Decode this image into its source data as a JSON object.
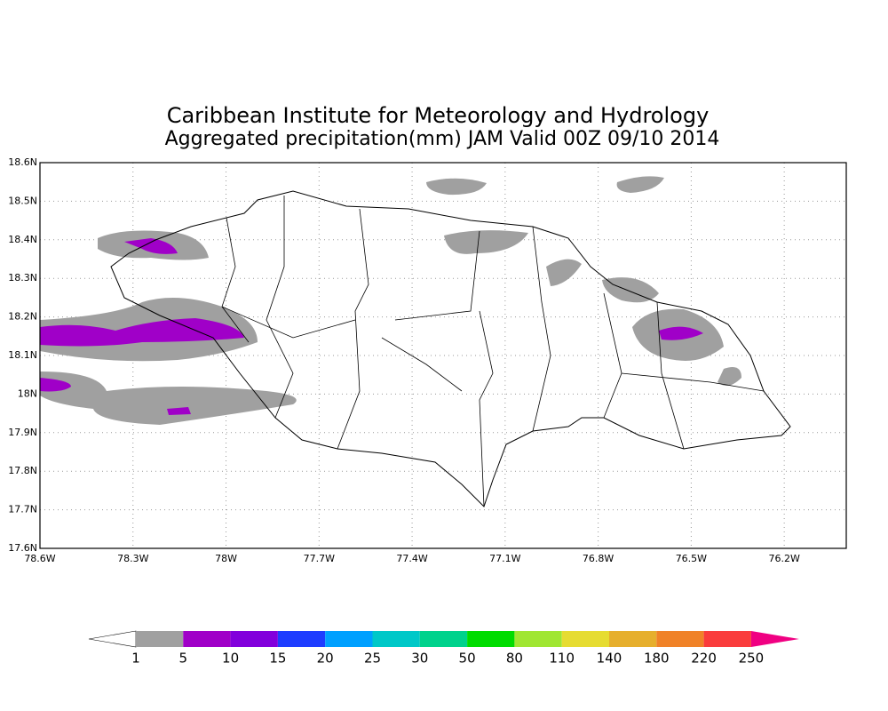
{
  "header": {
    "title": "Caribbean Institute for Meteorology and Hydrology",
    "subtitle": "Aggregated precipitation(mm) JAM Valid 00Z 09/10 2014"
  },
  "map": {
    "xlim": [
      -78.6,
      -76.0
    ],
    "ylim": [
      17.6,
      18.6
    ],
    "xticks": [
      {
        "value": -78.6,
        "label": "78.6W"
      },
      {
        "value": -78.3,
        "label": "78.3W"
      },
      {
        "value": -78.0,
        "label": "78W"
      },
      {
        "value": -77.7,
        "label": "77.7W"
      },
      {
        "value": -77.4,
        "label": "77.4W"
      },
      {
        "value": -77.1,
        "label": "77.1W"
      },
      {
        "value": -76.8,
        "label": "76.8W"
      },
      {
        "value": -76.5,
        "label": "76.5W"
      },
      {
        "value": -76.2,
        "label": "76.2W"
      }
    ],
    "yticks": [
      {
        "value": 17.6,
        "label": "17.6N"
      },
      {
        "value": 17.7,
        "label": "17.7N"
      },
      {
        "value": 17.8,
        "label": "17.8N"
      },
      {
        "value": 17.9,
        "label": "17.9N"
      },
      {
        "value": 18.0,
        "label": "18N"
      },
      {
        "value": 18.1,
        "label": "18.1N"
      },
      {
        "value": 18.2,
        "label": "18.2N"
      },
      {
        "value": 18.3,
        "label": "18.3N"
      },
      {
        "value": 18.4,
        "label": "18.4N"
      },
      {
        "value": 18.5,
        "label": "18.5N"
      },
      {
        "value": 18.6,
        "label": "18.6N"
      }
    ],
    "grid": true
  },
  "colorbar": {
    "levels": [
      1,
      5,
      10,
      15,
      20,
      25,
      30,
      50,
      80,
      110,
      140,
      180,
      220,
      250
    ],
    "under_color": "#ffffff",
    "over_color": "#f00082",
    "colors": [
      "#a0a0a0",
      "#a000c8",
      "#8200dc",
      "#1e3cff",
      "#00a0ff",
      "#00c8c8",
      "#00d28c",
      "#00dc00",
      "#a0e632",
      "#e6dc32",
      "#e6af2d",
      "#f08228",
      "#fa3c3c"
    ]
  }
}
